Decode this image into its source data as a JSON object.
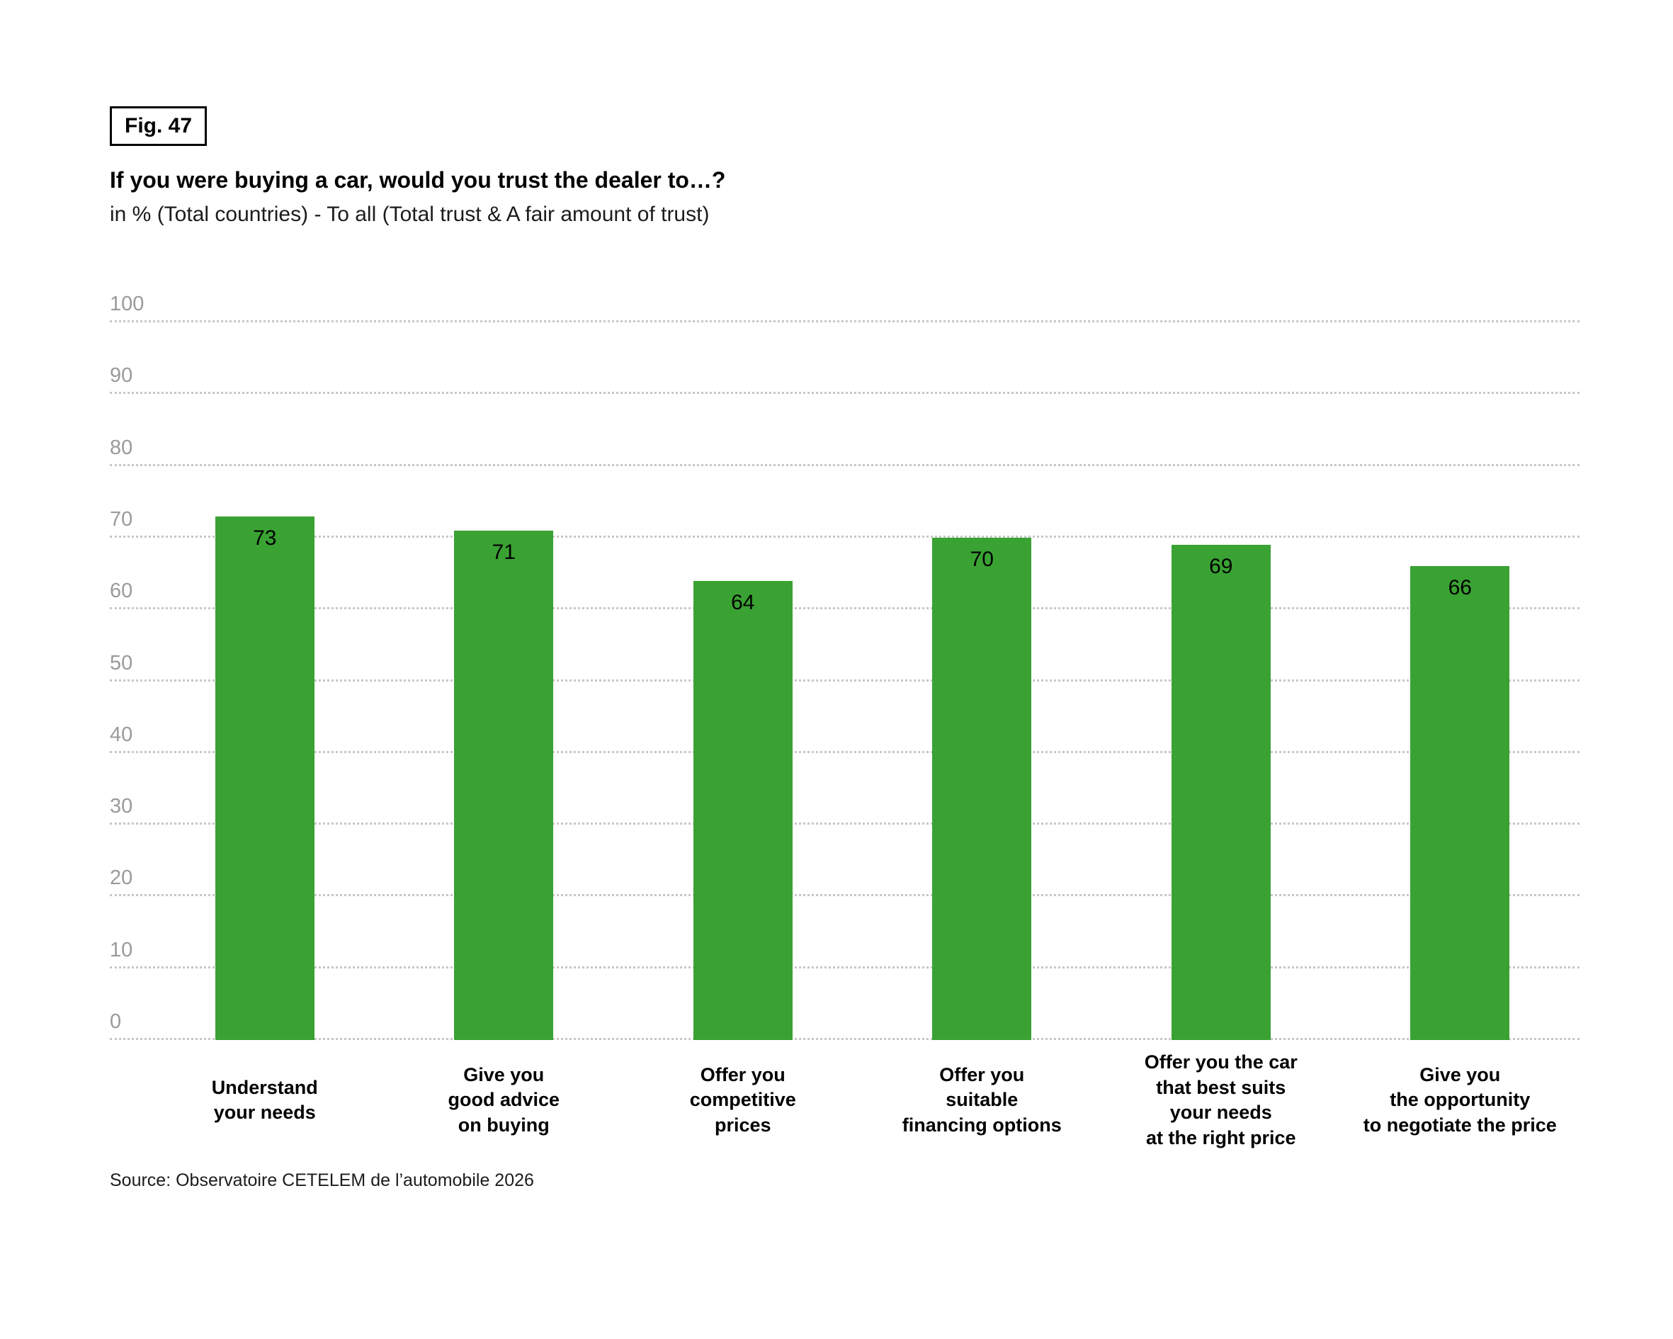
{
  "figure": {
    "label": "Fig. 47",
    "title": "If you were buying a car, would you trust the dealer to…?",
    "subtitle": "in % (Total countries) - To all (Total trust & A fair amount of trust)",
    "source": "Source: Observatoire CETELEM de l’automobile 2026"
  },
  "chart_data": {
    "type": "bar",
    "title": "If you were buying a car, would you trust the dealer to…?",
    "subtitle": "in % (Total countries) - To all (Total trust & A fair amount of trust)",
    "categories": [
      "Understand\nyour needs",
      "Give you\ngood advice\non buying",
      "Offer you\ncompetitive\nprices",
      "Offer you\nsuitable\nfinancing options",
      "Offer you the car\nthat best suits\nyour needs\nat the right price",
      "Give you\nthe opportunity\nto negotiate the price"
    ],
    "values": [
      73,
      71,
      64,
      70,
      69,
      66
    ],
    "xlabel": "",
    "ylabel": "",
    "ylim": [
      0,
      100
    ],
    "ytick_step": 10,
    "yticks": [
      0,
      10,
      20,
      30,
      40,
      50,
      60,
      70,
      80,
      90,
      100
    ],
    "grid": "horizontal dotted",
    "legend": null,
    "bar_color": "#3aa233",
    "value_labels": "inside-top"
  },
  "colors": {
    "bar": "#3aa233",
    "grid": "#c7c7c7",
    "tick_label": "#9a9a9a",
    "text": "#000000",
    "background": "#ffffff"
  }
}
